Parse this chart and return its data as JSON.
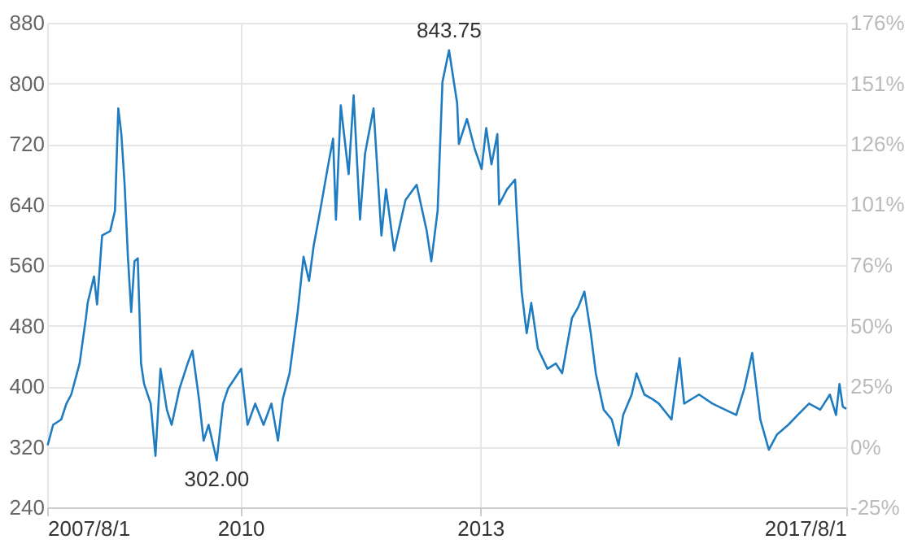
{
  "chart_data": {
    "type": "line",
    "x": [
      "2007-08-03",
      "2007-08-28",
      "2007-10-04",
      "2007-10-28",
      "2007-11-19",
      "2007-12-27",
      "2008-01-25",
      "2008-02-02",
      "2008-03-02",
      "2008-03-16",
      "2008-04-08",
      "2008-05-15",
      "2008-06-06",
      "2008-06-21",
      "2008-07-05",
      "2008-07-20",
      "2008-08-04",
      "2008-08-19",
      "2008-09-03",
      "2008-09-18",
      "2008-10-03",
      "2008-10-17",
      "2008-11-16",
      "2008-12-08",
      "2008-12-31",
      "2009-01-29",
      "2009-02-20",
      "2009-03-28",
      "2009-05-04",
      "2009-05-26",
      "2009-06-25",
      "2009-07-16",
      "2009-08-08",
      "2009-09-14",
      "2009-10-13",
      "2009-11-05",
      "2010-01-04",
      "2010-02-02",
      "2010-03-09",
      "2010-04-16",
      "2010-05-22",
      "2010-06-21",
      "2010-07-13",
      "2010-08-13",
      "2010-09-19",
      "2010-10-16",
      "2010-11-10",
      "2010-12-01",
      "2010-12-31",
      "2011-02-06",
      "2011-02-28",
      "2011-03-13",
      "2011-04-04",
      "2011-05-10",
      "2011-06-02",
      "2011-07-01",
      "2011-07-24",
      "2011-09-01",
      "2011-10-07",
      "2011-10-28",
      "2011-12-04",
      "2012-01-25",
      "2012-03-16",
      "2012-05-01",
      "2012-05-22",
      "2012-06-20",
      "2012-07-12",
      "2012-08-11",
      "2012-09-17",
      "2012-09-25",
      "2012-11-01",
      "2012-12-07",
      "2013-01-07",
      "2013-01-28",
      "2013-02-21",
      "2013-03-20",
      "2013-03-28",
      "2013-05-03",
      "2013-06-09",
      "2013-06-17",
      "2013-07-01",
      "2013-07-09",
      "2013-08-01",
      "2013-08-22",
      "2013-09-21",
      "2013-11-04",
      "2013-12-12",
      "2014-01-10",
      "2014-02-24",
      "2014-03-24",
      "2014-04-22",
      "2014-05-21",
      "2014-06-13",
      "2014-07-19",
      "2014-08-25",
      "2014-09-25",
      "2014-10-16",
      "2014-11-24",
      "2014-12-16",
      "2015-01-21",
      "2015-02-27",
      "2015-03-28",
      "2015-05-25",
      "2015-07-01",
      "2015-07-22",
      "2015-09-28",
      "2015-11-28",
      "2016-01-25",
      "2016-03-16",
      "2016-04-22",
      "2016-05-28",
      "2016-07-04",
      "2016-08-12",
      "2016-09-18",
      "2016-11-09",
      "2016-12-22",
      "2017-02-12",
      "2017-04-04",
      "2017-05-18",
      "2017-06-15",
      "2017-07-01",
      "2017-07-16",
      "2017-08-01"
    ],
    "series": [
      {
        "color": "#1f7cc1",
        "values": [
          322,
          349,
          356,
          377,
          389,
          430,
          490,
          510,
          545,
          508,
          599,
          605,
          632,
          767,
          733,
          666,
          571,
          498,
          565,
          569,
          430,
          403,
          377,
          308,
          423,
          369,
          349,
          397,
          430,
          447,
          383,
          328,
          349,
          302,
          377,
          397,
          423,
          349,
          377,
          349,
          377,
          328,
          383,
          417,
          498,
          571,
          539,
          585,
          632,
          693,
          727,
          620,
          771,
          680,
          784,
          620,
          707,
          767,
          599,
          660,
          579,
          646,
          666,
          605,
          565,
          632,
          802,
          843.75,
          774,
          720,
          753,
          713,
          687,
          741,
          693,
          733,
          640,
          660,
          673,
          626,
          559,
          525,
          470,
          510,
          450,
          423,
          430,
          417,
          490,
          504,
          525,
          470,
          417,
          369,
          356,
          322,
          362,
          389,
          417,
          389,
          383,
          377,
          356,
          437,
          377,
          389,
          377,
          369,
          362,
          397,
          444,
          356,
          316,
          336,
          349,
          362,
          377,
          369,
          389,
          362,
          403,
          373,
          370
        ]
      }
    ],
    "xlim": [
      "2007-08-01",
      "2017-08-01"
    ],
    "xticks": [
      {
        "value": "2007-08-01",
        "label": "2007/8/1"
      },
      {
        "value": "2010-01-01",
        "label": "2010"
      },
      {
        "value": "2013-01-01",
        "label": "2013"
      },
      {
        "value": "2017-08-01",
        "label": "2017/8/1"
      }
    ],
    "ylim": [
      240,
      880
    ],
    "yticks": [
      240,
      320,
      400,
      480,
      560,
      640,
      720,
      800,
      880
    ],
    "y2lim": [
      -24.76,
      175.86
    ],
    "y2ticks": [
      {
        "value": -24.76,
        "label": "-25%"
      },
      {
        "value": 0.31,
        "label": "0%"
      },
      {
        "value": 25.39,
        "label": "25%"
      },
      {
        "value": 50.47,
        "label": "50%"
      },
      {
        "value": 75.55,
        "label": "76%"
      },
      {
        "value": 100.63,
        "label": "101%"
      },
      {
        "value": 125.71,
        "label": "126%"
      },
      {
        "value": 150.78,
        "label": "151%"
      },
      {
        "value": 175.86,
        "label": "176%"
      }
    ],
    "grid": true,
    "annotations": [
      {
        "text": "302.00",
        "x": "2009-09-14",
        "y": 302
      },
      {
        "text": "843.75",
        "x": "2012-08-11",
        "y": 843.75
      }
    ]
  }
}
